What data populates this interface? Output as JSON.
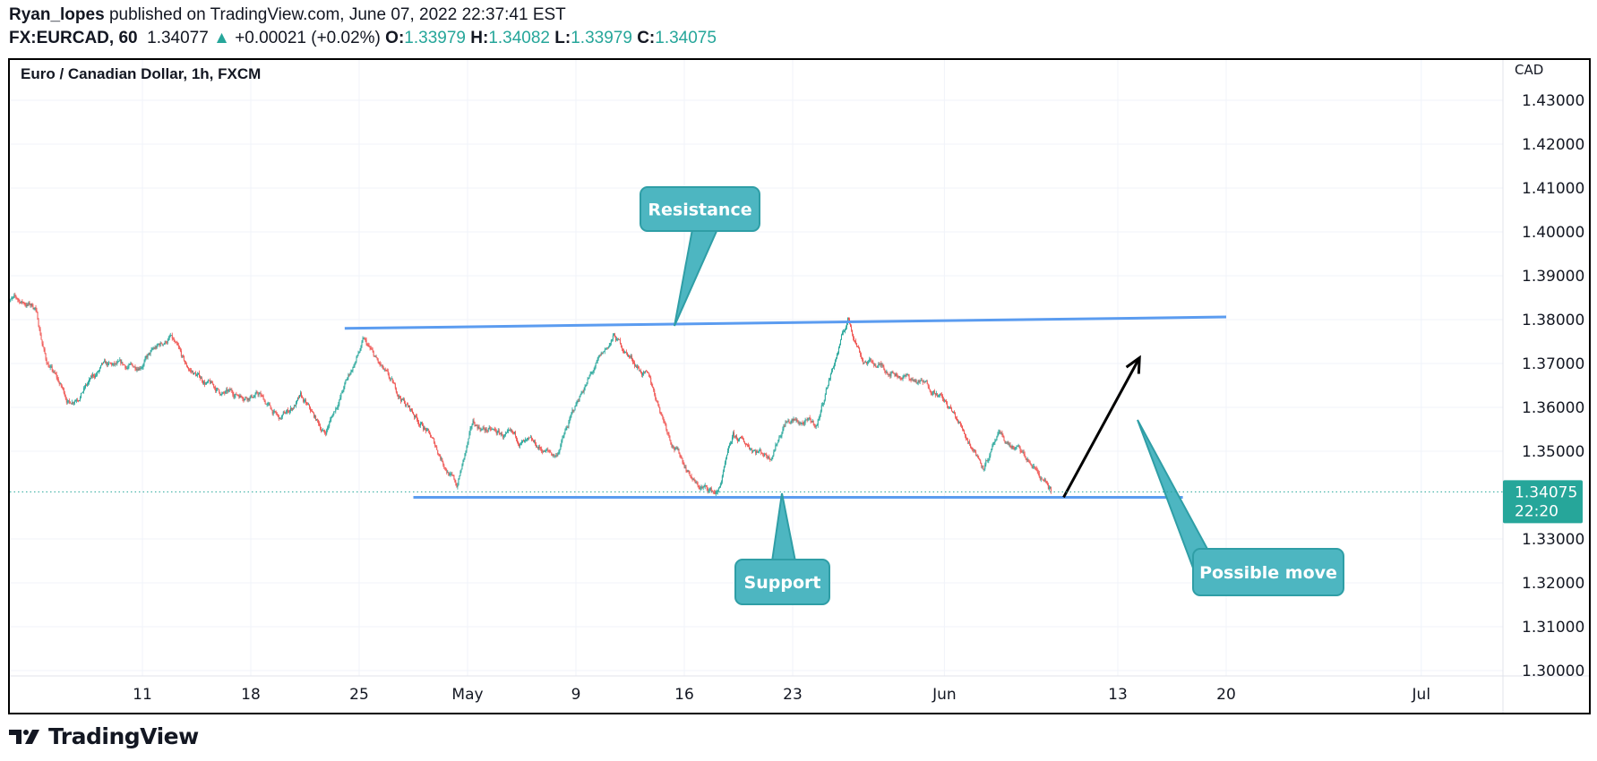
{
  "header": {
    "author": "Ryan_lopes",
    "published_text": "published on TradingView.com, June 07, 2022 22:37:41 EST",
    "symbol": "FX:EURCAD, 60",
    "last": "1.34077",
    "change": "+0.00021 (+0.02%)",
    "o_label": "O:",
    "o": "1.33979",
    "h_label": "H:",
    "h": "1.34082",
    "l_label": "L:",
    "l": "1.33979",
    "c_label": "C:",
    "c": "1.34075"
  },
  "footer": {
    "brand": "TradingView"
  },
  "chart_data": {
    "type": "candlestick",
    "title": "Euro / Canadian Dollar, 1h, FXCM",
    "currency": "CAD",
    "ylim": [
      1.3,
      1.43
    ],
    "grid": true,
    "y_ticks": [
      "1.43000",
      "1.42000",
      "1.41000",
      "1.40000",
      "1.39000",
      "1.38000",
      "1.37000",
      "1.36000",
      "1.35000",
      "1.33000",
      "1.32000",
      "1.31000",
      "1.30000"
    ],
    "x_ticks": [
      {
        "label": "11",
        "date": "2022-04-11"
      },
      {
        "label": "18",
        "date": "2022-04-18"
      },
      {
        "label": "25",
        "date": "2022-04-25"
      },
      {
        "label": "May",
        "date": "2022-05-02"
      },
      {
        "label": "9",
        "date": "2022-05-09"
      },
      {
        "label": "16",
        "date": "2022-05-16"
      },
      {
        "label": "23",
        "date": "2022-05-23"
      },
      {
        "label": "Jun",
        "date": "2022-06-01"
      },
      {
        "label": "13",
        "date": "2022-06-13"
      },
      {
        "label": "20",
        "date": "2022-06-20"
      },
      {
        "label": "Jul",
        "date": "2022-07-01"
      }
    ],
    "current_price": {
      "value": "1.34075",
      "countdown": "22:20"
    },
    "colors": {
      "up": "#26a69a",
      "down": "#ef5350",
      "trendline": "#5b9cf0",
      "callout": "#4db6c1"
    },
    "price_path": [
      [
        "2022-03-31T18",
        1.3852
      ],
      [
        "2022-04-01T10",
        1.384
      ],
      [
        "2022-04-04T01",
        1.383
      ],
      [
        "2022-04-04T13",
        1.371
      ],
      [
        "2022-04-05T15",
        1.361
      ],
      [
        "2022-04-07T04",
        1.369
      ],
      [
        "2022-04-08T15",
        1.369
      ],
      [
        "2022-04-12T07",
        1.376
      ],
      [
        "2022-04-13T00",
        1.369
      ],
      [
        "2022-04-14T17",
        1.363
      ],
      [
        "2022-04-18T09",
        1.363
      ],
      [
        "2022-04-19T08",
        1.357
      ],
      [
        "2022-04-20T07",
        1.362
      ],
      [
        "2022-04-21T10",
        1.354
      ],
      [
        "2022-04-22T06",
        1.364
      ],
      [
        "2022-04-25T05",
        1.375
      ],
      [
        "2022-04-26T15",
        1.364
      ],
      [
        "2022-04-28T02",
        1.355
      ],
      [
        "2022-04-29T12",
        1.342
      ],
      [
        "2022-05-02T06",
        1.356
      ],
      [
        "2022-05-03T22",
        1.353
      ],
      [
        "2022-05-06T02",
        1.349
      ],
      [
        "2022-05-09T07",
        1.364
      ],
      [
        "2022-05-10T18",
        1.376
      ],
      [
        "2022-05-12T10",
        1.366
      ],
      [
        "2022-05-13T09",
        1.353
      ],
      [
        "2022-05-16T14",
        1.342
      ],
      [
        "2022-05-17T13",
        1.3405
      ],
      [
        "2022-05-18T06",
        1.353
      ],
      [
        "2022-05-19T23",
        1.349
      ],
      [
        "2022-05-20T16",
        1.357
      ],
      [
        "2022-05-24T03",
        1.356
      ],
      [
        "2022-05-24T14",
        1.365
      ],
      [
        "2022-05-25T13",
        1.38
      ],
      [
        "2022-05-26T06",
        1.371
      ],
      [
        "2022-05-30T05",
        1.367
      ],
      [
        "2022-05-31T15",
        1.364
      ],
      [
        "2022-06-01T14",
        1.357
      ],
      [
        "2022-06-02T19",
        1.347
      ],
      [
        "2022-06-03T12",
        1.353
      ],
      [
        "2022-06-06T10",
        1.35
      ],
      [
        "2022-06-07T08",
        1.345
      ],
      [
        "2022-06-07T22",
        1.34075
      ]
    ],
    "annotations": {
      "resistance": {
        "label": "Resistance",
        "from": [
          "2022-04-22T08",
          1.378
        ],
        "to": [
          "2022-06-20T00",
          1.3806
        ]
      },
      "support": {
        "label": "Support",
        "from": [
          "2022-04-27T12",
          1.3395
        ],
        "to": [
          "2022-06-16T00",
          1.3395
        ]
      },
      "possible_move": {
        "label": "Possible move",
        "from": [
          "2022-06-08T12",
          1.3395
        ],
        "to": [
          "2022-06-14T00",
          1.3713
        ]
      }
    }
  }
}
